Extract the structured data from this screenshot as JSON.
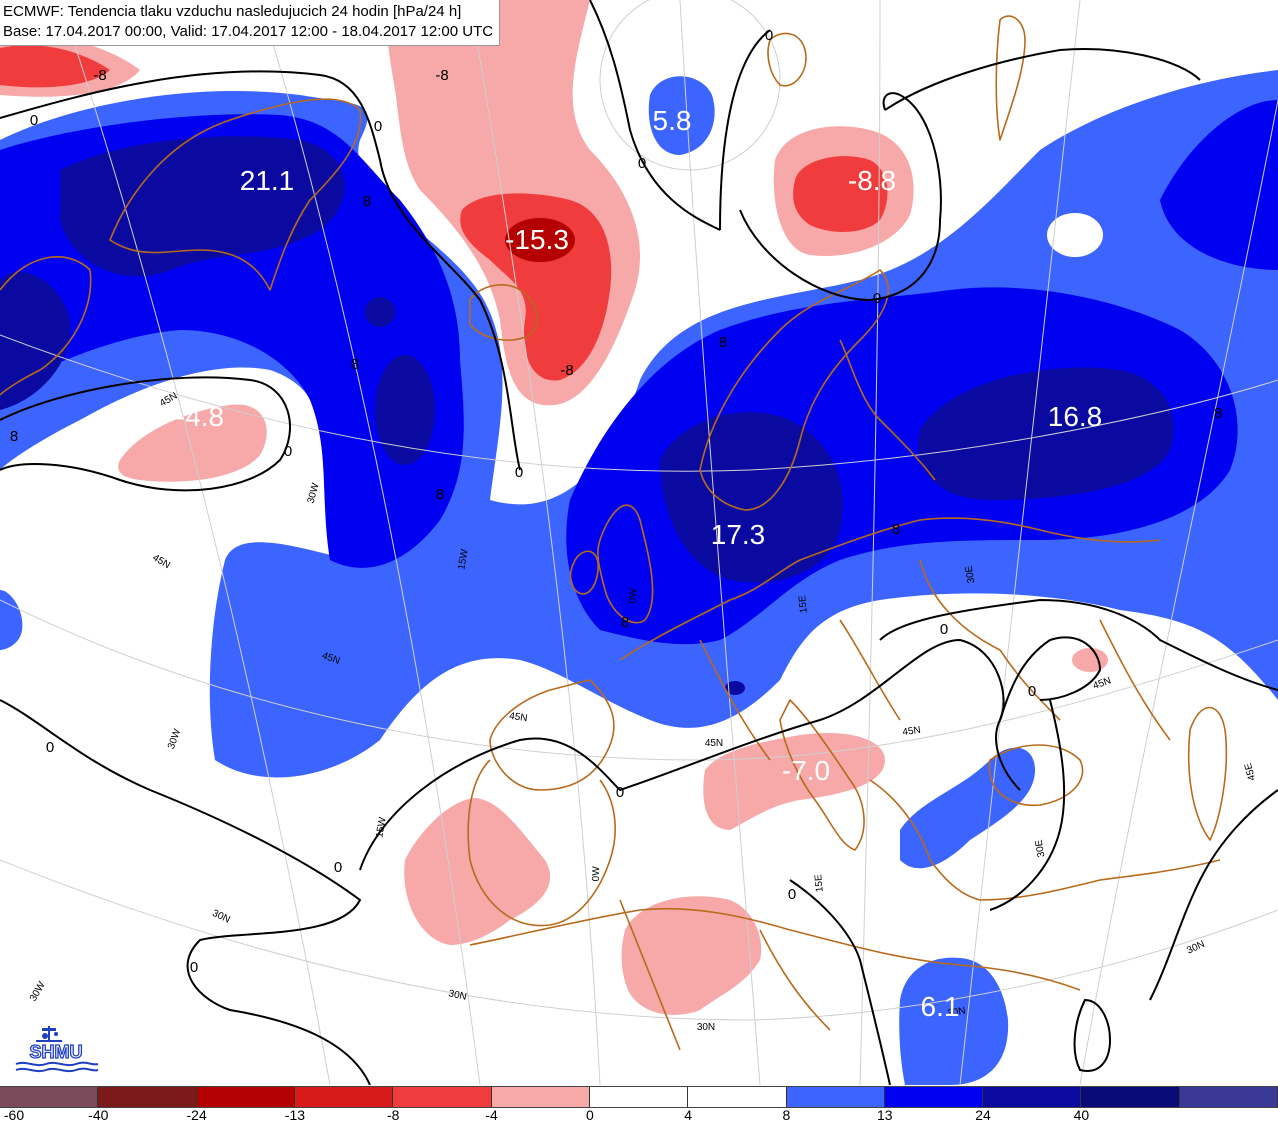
{
  "header": {
    "line1": "ECMWF: Tendencia tlaku vzduchu nasledujucich 24 hodin [hPa/24 h]",
    "line2": "Base: 17.04.2017 00:00, Valid: 17.04.2017 12:00 - 18.04.2017 12:00 UTC"
  },
  "colors": {
    "land_border": "#b86a1c",
    "positive_light": "#3c64ff",
    "positive_mid": "#0000f0",
    "positive_dark": "#0a0aa0",
    "negative_light": "#f7a8a8",
    "negative_mid": "#f03c3c",
    "negative_dark": "#b40000",
    "contour": "#000000"
  },
  "extrema": [
    {
      "id": "greenland-high",
      "label": "21.1"
    },
    {
      "id": "iceland-low",
      "label": "-15.3"
    },
    {
      "id": "svalbard-high",
      "label": "5.8"
    },
    {
      "id": "barents-low",
      "label": "-8.8"
    },
    {
      "id": "atlantic-low",
      "label": "-4.8"
    },
    {
      "id": "north-sea-high",
      "label": "17.3"
    },
    {
      "id": "russia-high",
      "label": "16.8"
    },
    {
      "id": "italy-low",
      "label": "-7.0"
    },
    {
      "id": "egypt-high",
      "label": "6.1"
    }
  ],
  "contour_labels": [
    {
      "id": "c1",
      "label": "-8"
    },
    {
      "id": "c2",
      "label": "-8"
    },
    {
      "id": "c3",
      "label": "0"
    },
    {
      "id": "c4",
      "label": "0"
    },
    {
      "id": "c5",
      "label": "0"
    },
    {
      "id": "c6",
      "label": "0"
    },
    {
      "id": "c7",
      "label": "8"
    },
    {
      "id": "c8",
      "label": "8"
    },
    {
      "id": "c9",
      "label": "8"
    },
    {
      "id": "c10",
      "label": "-8"
    },
    {
      "id": "c11",
      "label": "0"
    },
    {
      "id": "c12",
      "label": "0"
    },
    {
      "id": "c13",
      "label": "8"
    },
    {
      "id": "c14",
      "label": "8"
    },
    {
      "id": "c15",
      "label": "0"
    },
    {
      "id": "c16",
      "label": "0"
    },
    {
      "id": "c17",
      "label": "0"
    },
    {
      "id": "c18",
      "label": "0"
    },
    {
      "id": "c19",
      "label": "0"
    },
    {
      "id": "c20",
      "label": "0"
    },
    {
      "id": "c21",
      "label": "0"
    },
    {
      "id": "c22",
      "label": "0"
    },
    {
      "id": "c23",
      "label": "8"
    },
    {
      "id": "c24",
      "label": "8"
    },
    {
      "id": "c25",
      "label": "8"
    }
  ],
  "graticule_labels": [
    {
      "id": "g1",
      "label": "45N"
    },
    {
      "id": "g2",
      "label": "45N"
    },
    {
      "id": "g3",
      "label": "45N"
    },
    {
      "id": "g4",
      "label": "45N"
    },
    {
      "id": "g5",
      "label": "45N"
    },
    {
      "id": "g6",
      "label": "45N"
    },
    {
      "id": "g7",
      "label": "45N"
    },
    {
      "id": "g8",
      "label": "30N"
    },
    {
      "id": "g9",
      "label": "30N"
    },
    {
      "id": "g10",
      "label": "30N"
    },
    {
      "id": "g11",
      "label": "30N"
    },
    {
      "id": "g12",
      "label": "30N"
    },
    {
      "id": "g13",
      "label": "30W"
    },
    {
      "id": "g14",
      "label": "30W"
    },
    {
      "id": "g15",
      "label": "30W"
    },
    {
      "id": "g16",
      "label": "15W"
    },
    {
      "id": "g17",
      "label": "15W"
    },
    {
      "id": "g18",
      "label": "0W"
    },
    {
      "id": "g19",
      "label": "0W"
    },
    {
      "id": "g20",
      "label": "15E"
    },
    {
      "id": "g21",
      "label": "15E"
    },
    {
      "id": "g22",
      "label": "30E"
    },
    {
      "id": "g23",
      "label": "30E"
    },
    {
      "id": "g24",
      "label": "45E"
    }
  ],
  "legend": {
    "boundaries": [
      "-60",
      "-40",
      "-24",
      "-13",
      "-8",
      "-4",
      "0",
      "4",
      "8",
      "13",
      "24",
      "40"
    ],
    "colors": [
      "#7a4a5a",
      "#7a1a1a",
      "#b40000",
      "#d81a1a",
      "#f03c3c",
      "#f7a8a8",
      "#ffffff",
      "#ffffff",
      "#3c64ff",
      "#0000f0",
      "#0a0aa0",
      "#0a0a78",
      "#3a3a96"
    ]
  },
  "logo": {
    "text": "SHMU"
  }
}
